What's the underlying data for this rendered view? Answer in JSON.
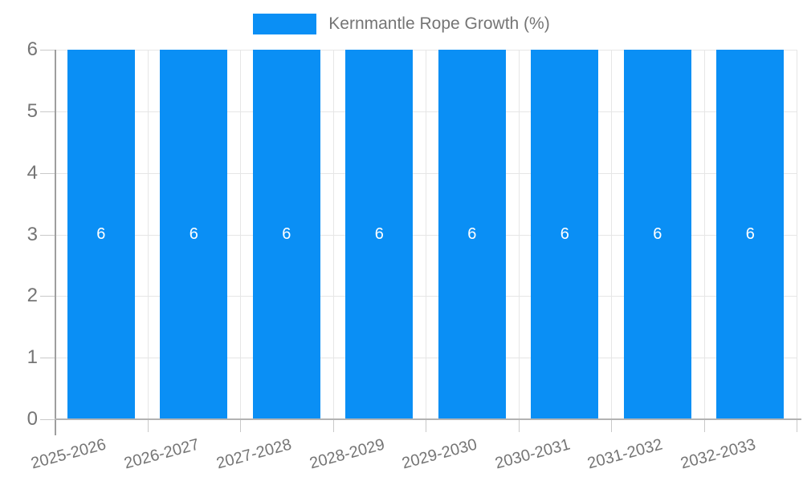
{
  "chart_data": {
    "type": "bar",
    "title": "Kernmantle Rope Growth (%)",
    "categories": [
      "2025-2026",
      "2026-2027",
      "2027-2028",
      "2028-2029",
      "2029-2030",
      "2030-2031",
      "2031-2032",
      "2032-2033"
    ],
    "series": [
      {
        "name": "Kernmantle Rope Growth (%)",
        "color": "#0a8ff5",
        "values": [
          6,
          6,
          6,
          6,
          6,
          6,
          6,
          6
        ]
      }
    ],
    "bar_value_labels": [
      "6",
      "6",
      "6",
      "6",
      "6",
      "6",
      "6",
      "6"
    ],
    "xlabel": "",
    "ylabel": "",
    "ylim": [
      0,
      6
    ],
    "yticks": [
      0,
      1,
      2,
      3,
      4,
      5,
      6
    ],
    "grid": true,
    "legend_position": "top-center",
    "x_tick_rotation_deg": -15
  },
  "legend": {
    "label": "Kernmantle Rope Growth (%)",
    "swatch_color": "#0a8ff5"
  },
  "colors": {
    "bar": "#0a8ff5",
    "background": "#ffffff",
    "gridline": "#e6e6e6",
    "axis_line": "#9e9e9e",
    "baseline": "#b3b3b3",
    "tick": "#c9c9c9",
    "axis_text": "#757575",
    "legend_text": "#757575",
    "value_label": "#ffffff"
  }
}
